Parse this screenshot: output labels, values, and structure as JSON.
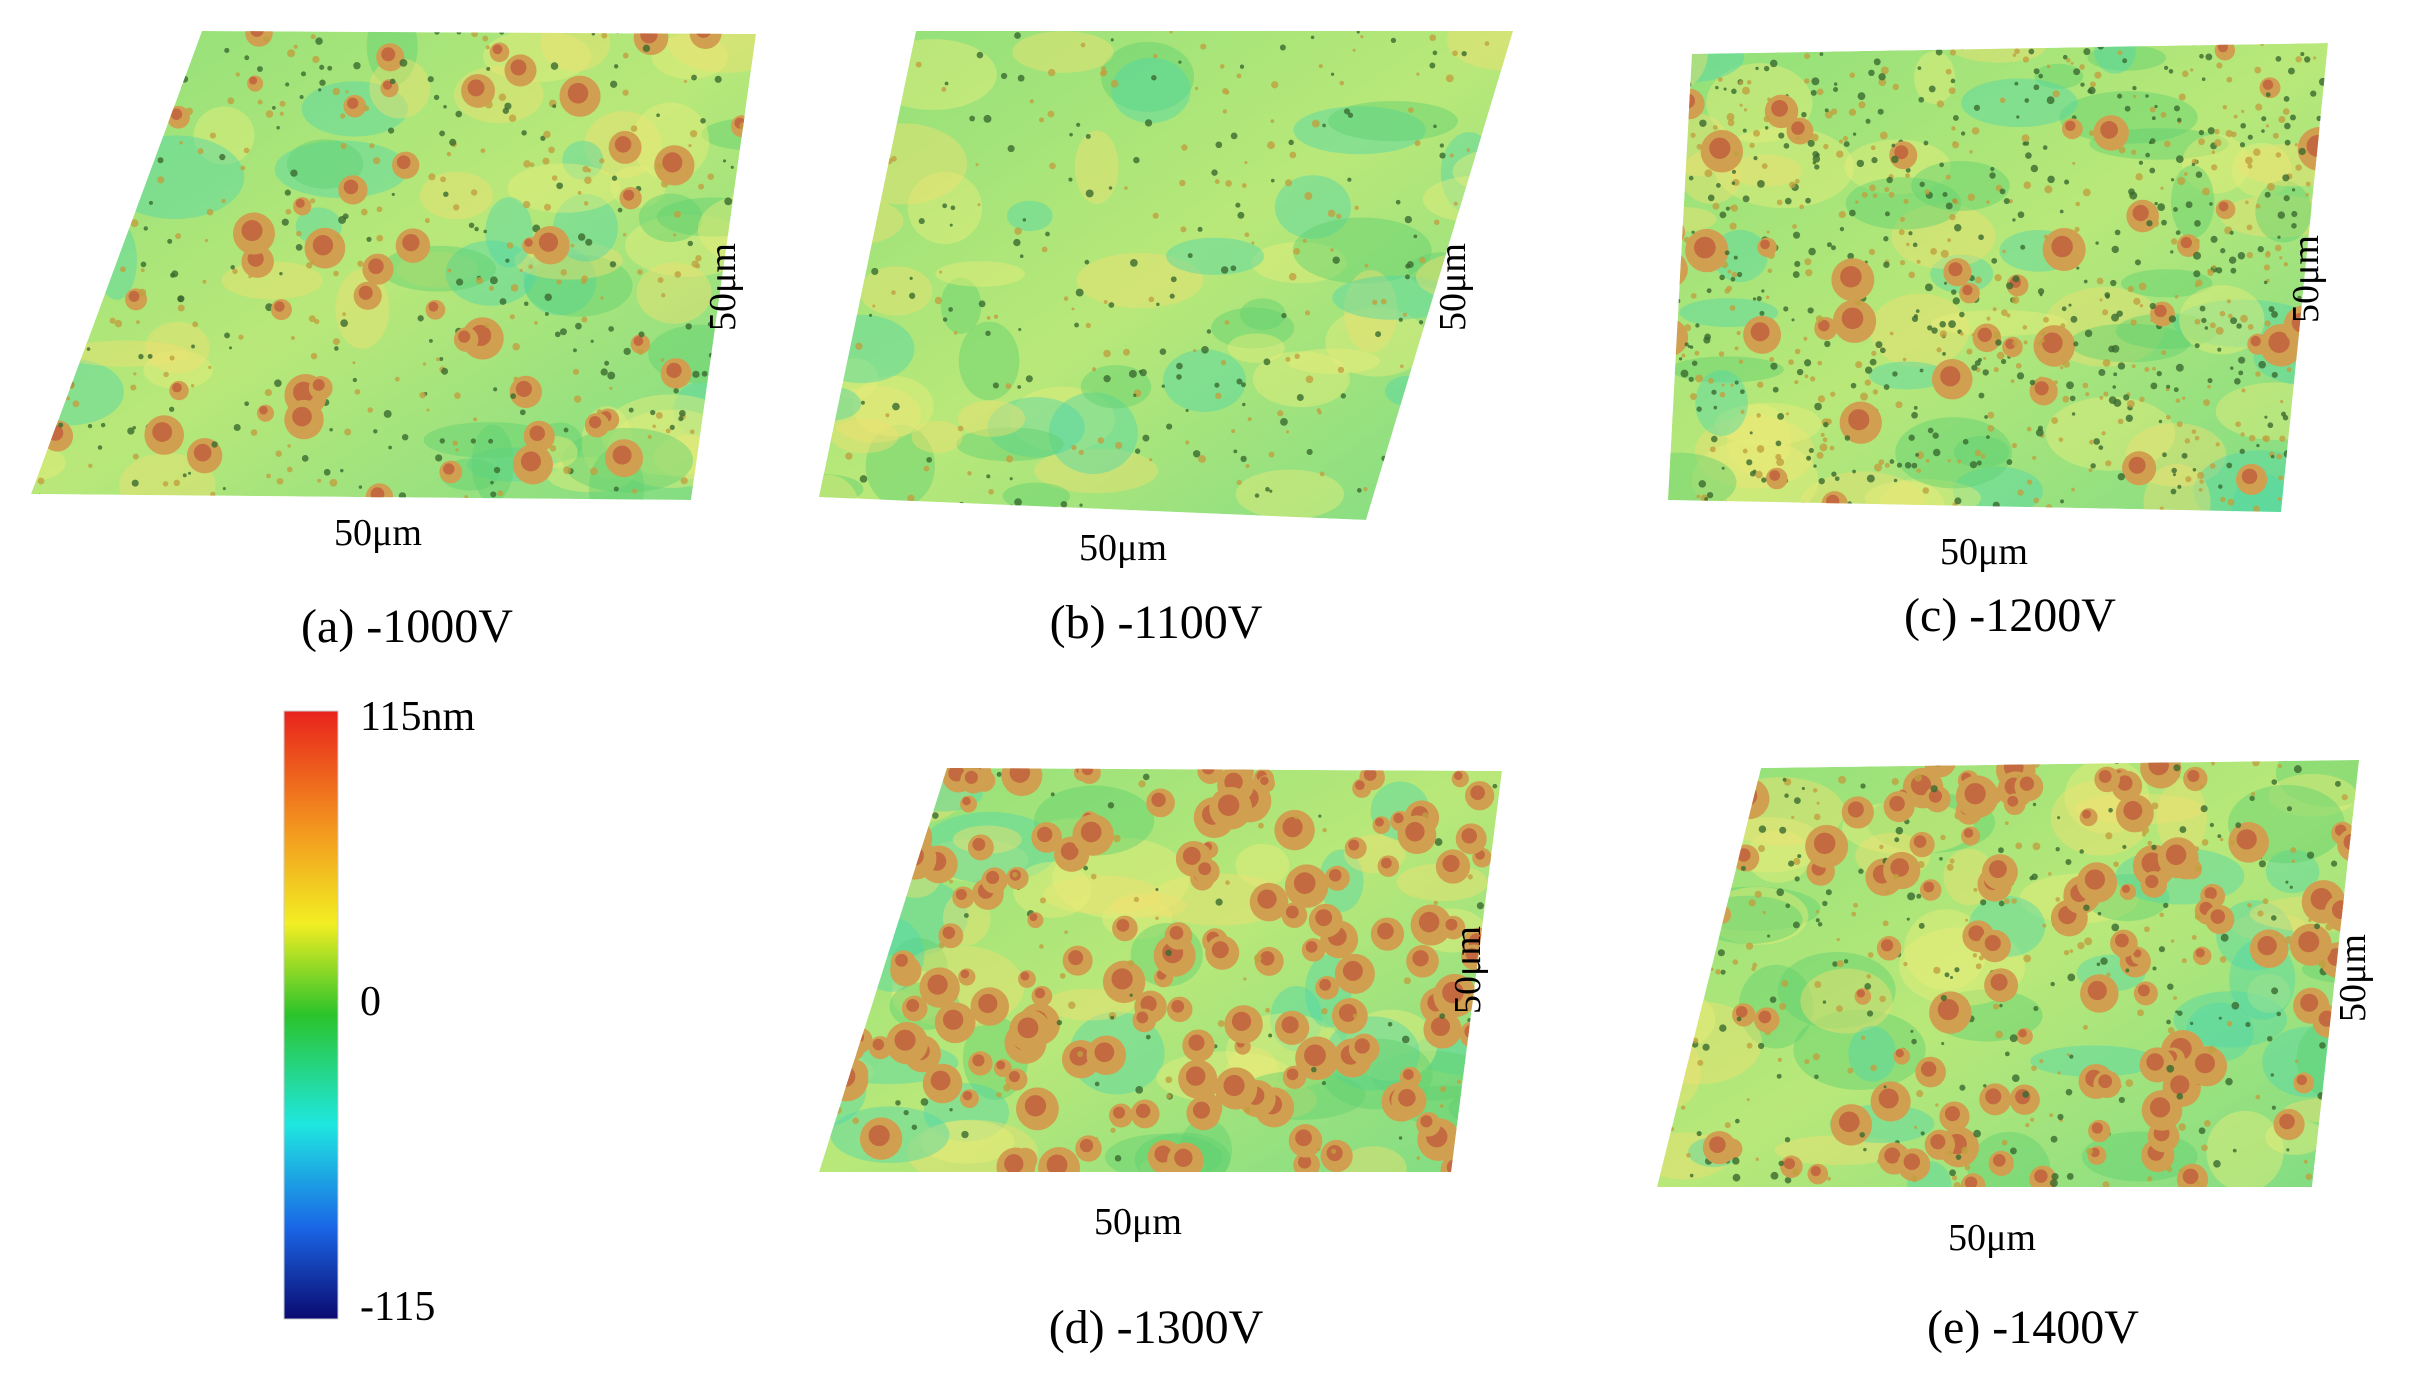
{
  "panels": [
    {
      "caption": "(a) -1000V",
      "x_label": "50μm",
      "y_label": "50μm"
    },
    {
      "caption": "(b) -1100V",
      "x_label": "50μm",
      "y_label": "50μm"
    },
    {
      "caption": "(c) -1200V",
      "x_label": "50μm",
      "y_label": "50μm"
    },
    {
      "caption": "(d) -1300V",
      "x_label": "50μm",
      "y_label": "50μm"
    },
    {
      "caption": "(e) -1400V",
      "x_label": "50μm",
      "y_label": "50μm"
    }
  ],
  "colorbar": {
    "max_label": "115nm",
    "mid_label": "0",
    "min_label": "-115"
  }
}
